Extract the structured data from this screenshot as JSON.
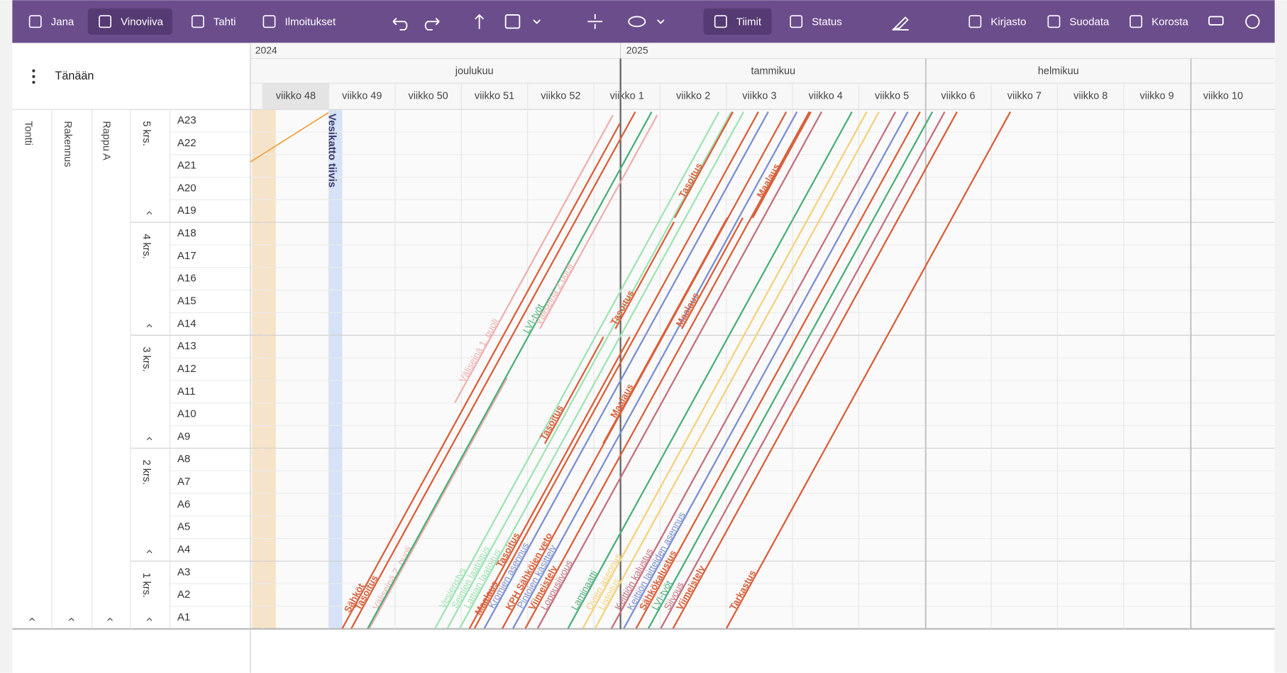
{
  "toolbar": {
    "left": [
      "Jana",
      "Vinoviiva",
      "Tahti",
      "Ilmoitukset"
    ],
    "right": [
      "Tiimit",
      "Status",
      "Kirjasto",
      "Suodata",
      "Korosta"
    ]
  },
  "today": "Tänään",
  "columns": [
    "Tontti",
    "Rakennus",
    "Rappu A"
  ],
  "years": [
    "2024",
    "2025"
  ],
  "months": [
    "joulukuu",
    "tammikuu",
    "helmikuu"
  ],
  "weeks": [
    "viikko 48",
    "viikko 49",
    "viikko 50",
    "viikko 51",
    "viikko 52",
    "viikko 1",
    "viikko 2",
    "viikko 3",
    "viikko 4",
    "viikko 5",
    "viikko 6",
    "viikko 7",
    "viikko 8",
    "viikko 9",
    "viikko 10"
  ],
  "floors": [
    {
      "label": "5 krs.",
      "units": [
        "A23",
        "A22",
        "A21",
        "A20",
        "A19"
      ]
    },
    {
      "label": "4 krs.",
      "units": [
        "A18",
        "A17",
        "A16",
        "A15",
        "A14"
      ]
    },
    {
      "label": "3 krs.",
      "units": [
        "A13",
        "A12",
        "A11",
        "A10",
        "A9"
      ]
    },
    {
      "label": "2 krs.",
      "units": [
        "A8",
        "A7",
        "A6",
        "A5",
        "A4"
      ]
    },
    {
      "label": "1 krs.",
      "units": [
        "A3",
        "A2",
        "A1"
      ]
    }
  ],
  "milestone": "Vesikatto tiivis",
  "tasks": [
    {
      "label": "Sähköt",
      "color": "#d9603b"
    },
    {
      "label": "Tasoitus",
      "color": "#d9603b"
    },
    {
      "label": "Väliseinä 2. puoli",
      "color": "#eeb0b0"
    },
    {
      "label": "Väliseinä 1. puoli",
      "color": "#eeb0b0"
    },
    {
      "label": "LVI-työt",
      "color": "#4caf7a"
    },
    {
      "label": "Väliseinä 2.puoli",
      "color": "#eeb0b0"
    },
    {
      "label": "Vesieristys",
      "color": "#9fe3b4"
    },
    {
      "label": "Seinien laatoitus",
      "color": "#9fe3b4"
    },
    {
      "label": "Lattian laatoitus",
      "color": "#9fe3b4"
    },
    {
      "label": "Tasoitus",
      "color": "#d9603b"
    },
    {
      "label": "Maalaus",
      "color": "#d9603b"
    },
    {
      "label": "Kromien asennus",
      "color": "#7b8fd0"
    },
    {
      "label": "KPH Sähköjen veto",
      "color": "#d9603b"
    },
    {
      "label": "Pintojen käsittely",
      "color": "#7b8fd0"
    },
    {
      "label": "Viimeistely",
      "color": "#d9603b"
    },
    {
      "label": "Loppusiivous",
      "color": "#c4707e"
    },
    {
      "label": "Laminaatti",
      "color": "#4caf7a"
    },
    {
      "label": "Ovien asennus",
      "color": "#f3d27e"
    },
    {
      "label": "Listoitus",
      "color": "#f3d27e"
    },
    {
      "label": "Keittiön kalustus",
      "color": "#c4707e"
    },
    {
      "label": "Keittiön laitteiden asennus",
      "color": "#7b8fd0"
    },
    {
      "label": "Sähkökalustus",
      "color": "#d9603b"
    },
    {
      "label": "LVI-työt",
      "color": "#4caf7a"
    },
    {
      "label": "Siivous",
      "color": "#c4707e"
    },
    {
      "label": "Viimeistely",
      "color": "#d9603b"
    },
    {
      "label": "Tarkastus",
      "color": "#d9603b"
    },
    {
      "label": "Tasoitus",
      "color": "#d9603b"
    },
    {
      "label": "Maalaus",
      "color": "#d9603b"
    },
    {
      "label": "Tasoitus",
      "color": "#d9603b"
    },
    {
      "label": "Maalaus",
      "color": "#d9603b"
    },
    {
      "label": "Tasoitus",
      "color": "#d9603b"
    },
    {
      "label": "Maalaus",
      "color": "#d9603b"
    }
  ]
}
